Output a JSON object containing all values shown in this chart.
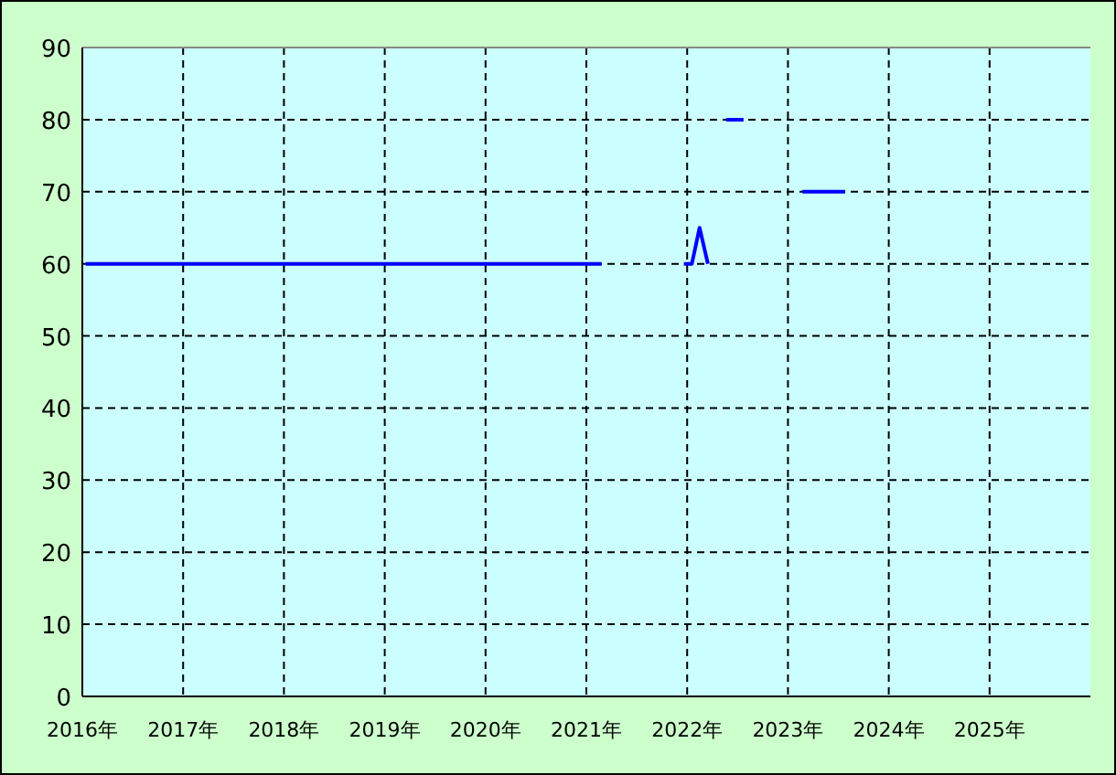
{
  "chart_data": {
    "type": "line",
    "x": [
      "2016-01-13",
      "2021-02-25",
      null,
      "2021-12-20",
      "2022-01-18",
      "2022-02-15",
      "2022-03-17",
      null,
      "2022-05-22",
      "2022-07-24",
      null,
      "2023-02-22",
      "2023-07-27"
    ],
    "series": [
      {
        "color": "#0000ff",
        "values": [
          60,
          60,
          null,
          60,
          60,
          65,
          60,
          null,
          80,
          80,
          null,
          70,
          70
        ]
      }
    ],
    "xlim": [
      "2016",
      "2026"
    ],
    "xticks": [
      {
        "value": "2016",
        "label": "2016年"
      },
      {
        "value": "2017",
        "label": "2017年"
      },
      {
        "value": "2018",
        "label": "2018年"
      },
      {
        "value": "2019",
        "label": "2019年"
      },
      {
        "value": "2020",
        "label": "2020年"
      },
      {
        "value": "2021",
        "label": "2021年"
      },
      {
        "value": "2022",
        "label": "2022年"
      },
      {
        "value": "2023",
        "label": "2023年"
      },
      {
        "value": "2024",
        "label": "2024年"
      },
      {
        "value": "2025",
        "label": "2025年"
      }
    ],
    "ylim": [
      0,
      90
    ],
    "yticks": [
      0,
      10,
      20,
      30,
      40,
      50,
      60,
      70,
      80,
      90
    ],
    "grid": true,
    "line_style": "solid"
  }
}
